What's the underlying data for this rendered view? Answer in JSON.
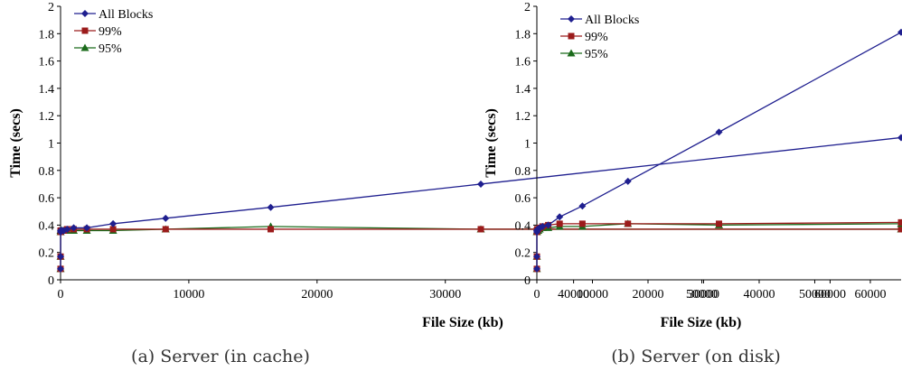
{
  "chart_data": [
    {
      "type": "line",
      "caption": "(a) Server (in cache)",
      "xlabel": "File Size (kb)",
      "ylabel": "Time (secs)",
      "xlim": [
        0,
        65536
      ],
      "ylim": [
        0,
        2
      ],
      "xticks": [
        0,
        10000,
        20000,
        30000,
        40000,
        50000,
        60000
      ],
      "yticks": [
        0,
        0.2,
        0.4,
        0.6,
        0.8,
        1,
        1.2,
        1.4,
        1.6,
        1.8,
        2
      ],
      "ytick_labels": [
        "0",
        "0.2",
        "0.4",
        "0.6",
        "0.8",
        "1",
        "1.2",
        "1.4",
        "1.6",
        "1.8",
        "2"
      ],
      "legend_placement": "top-left",
      "grid": false,
      "x": [
        1,
        2,
        4,
        8,
        16,
        32,
        64,
        128,
        256,
        512,
        1024,
        2048,
        4096,
        8192,
        16384,
        32768,
        65536
      ],
      "series": [
        {
          "name": "All Blocks",
          "color": "#1f1f8f",
          "marker": "diamond",
          "values": [
            0.08,
            0.17,
            0.35,
            0.36,
            0.36,
            0.36,
            0.36,
            0.36,
            0.36,
            0.37,
            0.38,
            0.38,
            0.41,
            0.45,
            0.53,
            0.7,
            1.04
          ]
        },
        {
          "name": "99%",
          "color": "#9b1b1b",
          "marker": "square",
          "values": [
            0.08,
            0.17,
            0.35,
            0.36,
            0.36,
            0.36,
            0.36,
            0.36,
            0.36,
            0.37,
            0.37,
            0.37,
            0.37,
            0.37,
            0.37,
            0.37,
            0.37
          ]
        },
        {
          "name": "95%",
          "color": "#1b6b1b",
          "marker": "triangle",
          "values": [
            0.08,
            0.17,
            0.35,
            0.36,
            0.36,
            0.36,
            0.36,
            0.36,
            0.36,
            0.36,
            0.36,
            0.36,
            0.36,
            0.37,
            0.39,
            0.37,
            0.37
          ]
        }
      ]
    },
    {
      "type": "line",
      "caption": "(b) Server (on disk)",
      "xlabel": "File Size (kb)",
      "ylabel": "Time (secs)",
      "xlim": [
        0,
        65536
      ],
      "ylim": [
        0,
        2
      ],
      "xticks": [
        0,
        10000,
        20000,
        30000,
        40000,
        50000,
        60000
      ],
      "yticks": [
        0,
        0.2,
        0.4,
        0.6,
        0.8,
        1,
        1.2,
        1.4,
        1.6,
        1.8,
        2
      ],
      "ytick_labels": [
        "0",
        "0.2",
        "0.4",
        "0.6",
        "0.8",
        "1",
        "1.2",
        "1.4",
        "1.6",
        "1.8",
        "2"
      ],
      "legend_placement": "top-left",
      "grid": false,
      "x": [
        1,
        2,
        4,
        8,
        16,
        32,
        64,
        128,
        256,
        512,
        1024,
        2048,
        4096,
        8192,
        16384,
        32768,
        65536
      ],
      "series": [
        {
          "name": "All Blocks",
          "color": "#1f1f8f",
          "marker": "diamond",
          "values": [
            0.08,
            0.17,
            0.35,
            0.36,
            0.36,
            0.36,
            0.36,
            0.37,
            0.37,
            0.38,
            0.39,
            0.4,
            0.46,
            0.54,
            0.72,
            1.08,
            1.81
          ]
        },
        {
          "name": "99%",
          "color": "#9b1b1b",
          "marker": "square",
          "values": [
            0.08,
            0.17,
            0.35,
            0.36,
            0.36,
            0.36,
            0.37,
            0.37,
            0.37,
            0.38,
            0.39,
            0.4,
            0.41,
            0.41,
            0.41,
            0.41,
            0.42
          ]
        },
        {
          "name": "95%",
          "color": "#1b6b1b",
          "marker": "triangle",
          "values": [
            0.08,
            0.17,
            0.35,
            0.35,
            0.35,
            0.35,
            0.36,
            0.36,
            0.36,
            0.37,
            0.38,
            0.38,
            0.39,
            0.39,
            0.41,
            0.4,
            0.41
          ]
        }
      ]
    }
  ]
}
